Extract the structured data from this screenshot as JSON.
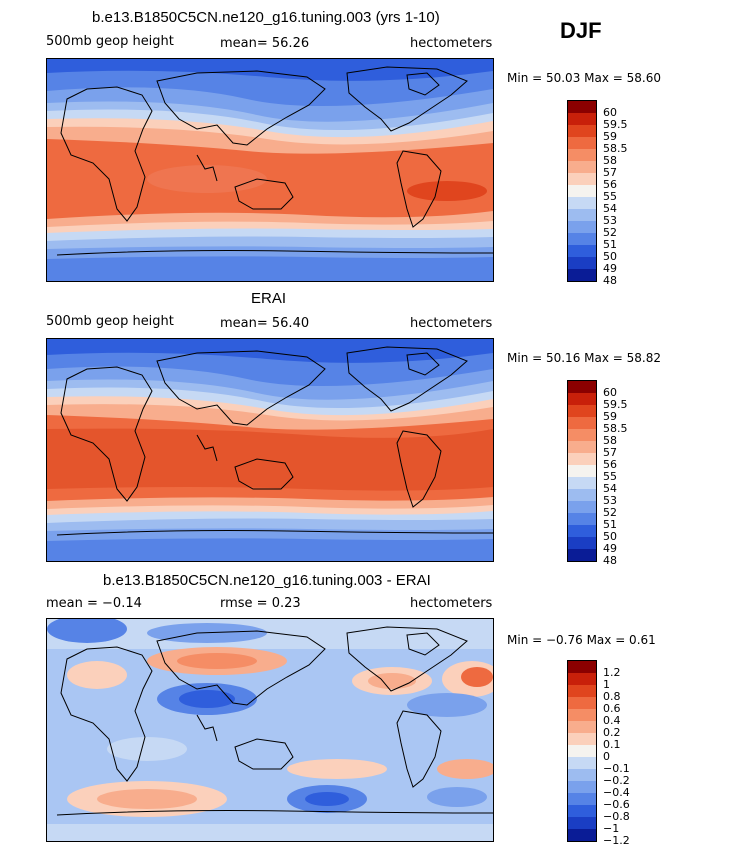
{
  "season": "DJF",
  "panels": [
    {
      "title": "b.e13.B1850C5CN.ne120_g16.tuning.003 (yrs 1-10)",
      "left_label": "500mb geop height",
      "center_label": "mean=  56.26",
      "right_label": "hectometers",
      "minmax": "Min =  50.03 Max =  58.60",
      "colorbar_labels": [
        "60",
        "59.5",
        "59",
        "58.5",
        "58",
        "57",
        "56",
        "55",
        "54",
        "53",
        "52",
        "51",
        "50",
        "49",
        "48"
      ]
    },
    {
      "title": "ERAI",
      "left_label": "500mb geop height",
      "center_label": "mean=  56.40",
      "right_label": "hectometers",
      "minmax": "Min =  50.16 Max =  58.82",
      "colorbar_labels": [
        "60",
        "59.5",
        "59",
        "58.5",
        "58",
        "57",
        "56",
        "55",
        "54",
        "53",
        "52",
        "51",
        "50",
        "49",
        "48"
      ]
    },
    {
      "title": "b.e13.B1850C5CN.ne120_g16.tuning.003 - ERAI",
      "left_label": "mean =  −0.14",
      "center_label": "rmse =   0.23",
      "right_label": "hectometers",
      "minmax": "Min =  −0.76 Max =   0.61",
      "colorbar_labels": [
        "1.2",
        "1",
        "0.8",
        "0.6",
        "0.4",
        "0.2",
        "0.1",
        "0",
        "−0.1",
        "−0.2",
        "−0.4",
        "−0.6",
        "−0.8",
        "−1",
        "−1.2"
      ]
    }
  ],
  "palette": [
    "#8b0000",
    "#c8200a",
    "#e0451e",
    "#ee6a40",
    "#f58d65",
    "#f8ad8d",
    "#fbd0bb",
    "#f5f3ef",
    "#c6d9f4",
    "#9dbcf0",
    "#7aa1ec",
    "#5683e6",
    "#2f5edc",
    "#1a3ec4",
    "#0a1c96"
  ],
  "colors": {
    "ocean_warm": "#ee7049",
    "ocean_warm_strong": "#e4552c",
    "mid_pink": "#f7a88a",
    "pale": "#fbd3c0",
    "cool_light": "#a9c4f0",
    "cool": "#6b95ea",
    "cool_dark": "#3d6be0",
    "diff_base": "#aac6f3"
  }
}
